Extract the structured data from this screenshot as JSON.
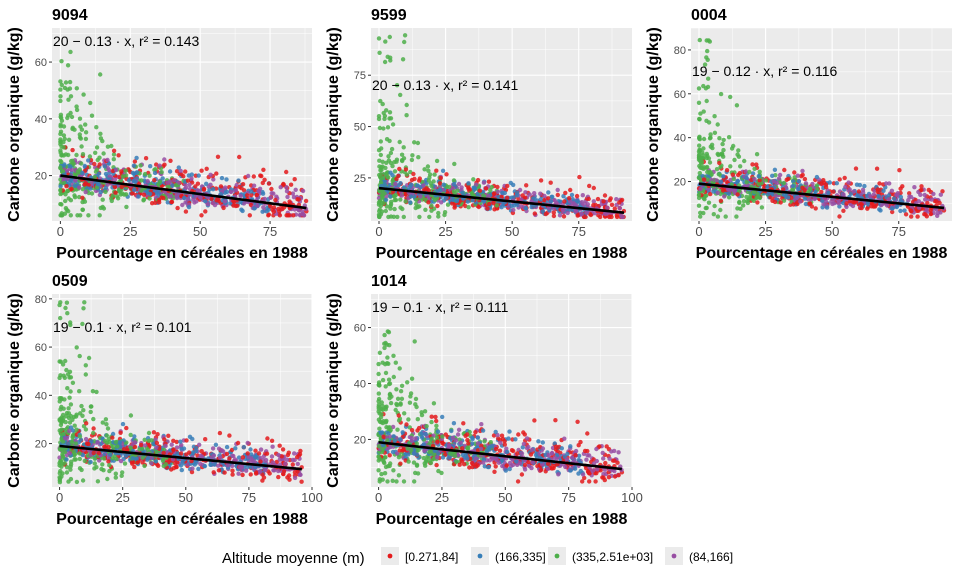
{
  "figure": {
    "xlabel": "Pourcentage en céréales en 1988",
    "ylabel": "Carbone organique (g/kg)",
    "legend_title": "Altitude moyenne (m)",
    "legend_position": "bottom",
    "colors": {
      "panel_bg": "#ebebeb",
      "grid": "#ffffff",
      "fit_line": "#000000",
      "tick_text": "#4d4d4d"
    }
  },
  "chart_data": [
    {
      "type": "scatter",
      "title": "9094",
      "equation": "20 − 0.13 · x,  r² = 0.143",
      "xlim": [
        -3,
        90
      ],
      "ylim": [
        4,
        72
      ],
      "xticks": [
        0,
        25,
        50,
        75
      ],
      "yticks": [
        20,
        40,
        60
      ],
      "fit": {
        "intercept": 20,
        "slope": -0.13,
        "r2": 0.143
      },
      "x_max": 88,
      "y_peak": 64,
      "n_points": 1100
    },
    {
      "type": "scatter",
      "title": "9599",
      "equation": "20 − 0.13 · x,  r² = 0.141",
      "xlim": [
        -3,
        95
      ],
      "ylim": [
        4,
        98
      ],
      "xticks": [
        0,
        25,
        50,
        75
      ],
      "yticks": [
        25,
        50,
        75
      ],
      "fit": {
        "intercept": 20,
        "slope": -0.13,
        "r2": 0.141
      },
      "x_max": 92,
      "y_peak": 95,
      "n_points": 1100
    },
    {
      "type": "scatter",
      "title": "0004",
      "equation": "19 − 0.12 · x,  r² = 0.116",
      "xlim": [
        -3,
        95
      ],
      "ylim": [
        2,
        90
      ],
      "xticks": [
        0,
        25,
        50,
        75
      ],
      "yticks": [
        20,
        40,
        60,
        80
      ],
      "fit": {
        "intercept": 19,
        "slope": -0.12,
        "r2": 0.116
      },
      "x_max": 92,
      "y_peak": 85,
      "n_points": 1100
    },
    {
      "type": "scatter",
      "title": "0509",
      "equation": "19 − 0.1 · x,  r² = 0.101",
      "xlim": [
        -3,
        100
      ],
      "ylim": [
        2,
        82
      ],
      "xticks": [
        0,
        25,
        50,
        75,
        100
      ],
      "yticks": [
        20,
        40,
        60,
        80
      ],
      "fit": {
        "intercept": 19,
        "slope": -0.1,
        "r2": 0.101
      },
      "x_max": 96,
      "y_peak": 79,
      "n_points": 1100
    },
    {
      "type": "scatter",
      "title": "1014",
      "equation": "19 − 0.1 · x,  r² = 0.111",
      "xlim": [
        -3,
        100
      ],
      "ylim": [
        3,
        72
      ],
      "xticks": [
        0,
        25,
        50,
        75,
        100
      ],
      "yticks": [
        20,
        40,
        60
      ],
      "fit": {
        "intercept": 19,
        "slope": -0.1,
        "r2": 0.111
      },
      "x_max": 96,
      "y_peak": 59,
      "n_points": 1100
    }
  ],
  "legend": [
    {
      "label": "[0.271,84]",
      "color": "#e41a1c"
    },
    {
      "label": "(166,335]",
      "color": "#377eb8"
    },
    {
      "label": "(335,2.51e+03]",
      "color": "#4daf4a"
    },
    {
      "label": "(84,166]",
      "color": "#984ea3"
    }
  ]
}
